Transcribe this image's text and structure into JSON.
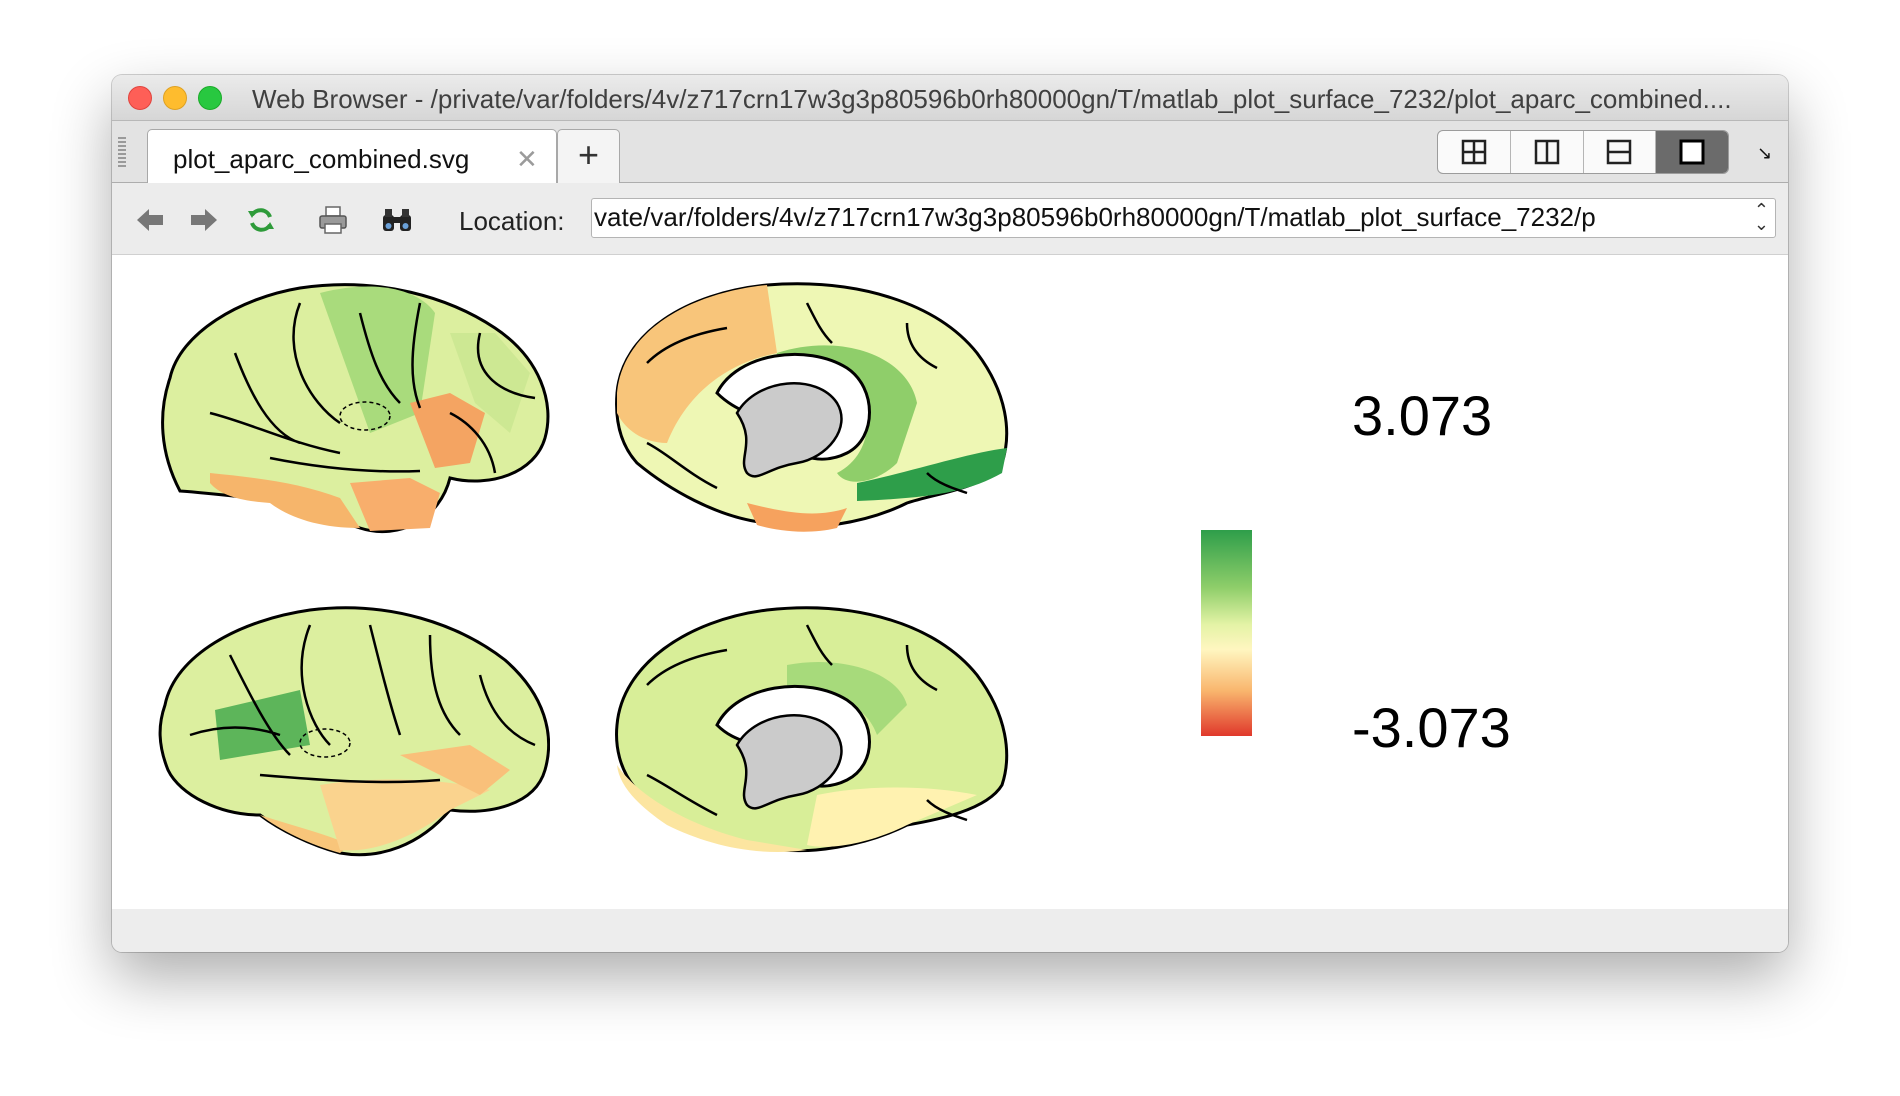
{
  "window": {
    "title": "Web Browser - /private/var/folders/4v/z717crn17w3g3p80596b0rh80000gn/T/matlab_plot_surface_7232/plot_aparc_combined...."
  },
  "tabs": [
    {
      "label": "plot_aparc_combined.svg",
      "close": "✕"
    }
  ],
  "new_tab_label": "+",
  "layout_buttons": [
    "tile-icon",
    "columns-icon",
    "rows-icon",
    "single-icon"
  ],
  "toolbar": {
    "icons": [
      "back-icon",
      "forward-icon",
      "refresh-icon",
      "print-icon",
      "find-icon"
    ],
    "location_label": "Location:",
    "location_value": "vate/var/folders/4v/z717crn17w3g3p80596b0rh80000gn/T/matlab_plot_surface_7232/p"
  },
  "colorbar": {
    "max_label": "3.073",
    "min_label": "-3.073",
    "colors": [
      "#2e9e4a",
      "#8fce6a",
      "#e4f3a6",
      "#fff6c0",
      "#f9b66e",
      "#e0382b"
    ]
  },
  "brain_views": [
    "left-lateral",
    "left-medial",
    "right-lateral",
    "right-medial"
  ]
}
